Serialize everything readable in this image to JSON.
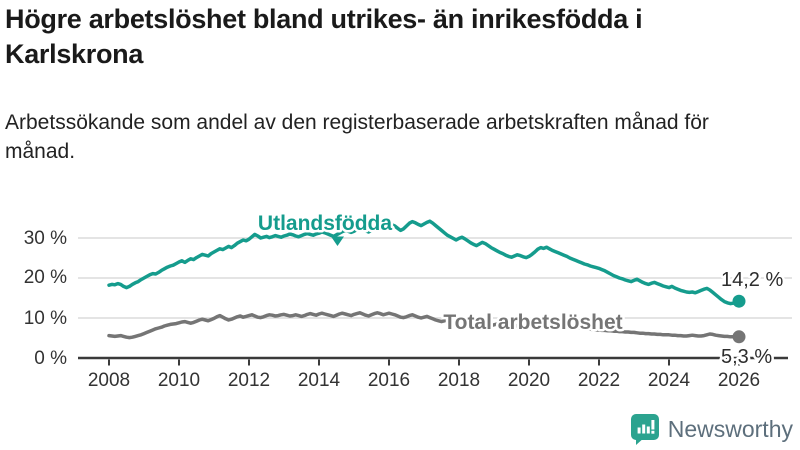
{
  "header": {
    "title": "Högre arbetslöshet bland utrikes- än inrikesfödda i Karlskrona",
    "subtitle": "Arbetssökande som andel av den registerbaserade arbetskraften månad för månad."
  },
  "colors": {
    "foreign_born_line": "#159c8d",
    "total_line": "#757575",
    "grid": "#dcdcdc",
    "axis": "#3a3a3a",
    "tick_text": "#333333",
    "logo_bubble": "#2ba38f",
    "logo_text": "#5d6f7c"
  },
  "chart_data": {
    "type": "line",
    "title": "Högre arbetslöshet bland utrikes- än inrikesfödda i Karlskrona",
    "subtitle": "Arbetssökande som andel av den registerbaserade arbetskraften månad för månad.",
    "xlabel": "",
    "ylabel": "",
    "grid": true,
    "x_unit": "month",
    "x_start_year": 2008,
    "x_end_year": 2026,
    "x_tick_years": [
      2008,
      2010,
      2012,
      2014,
      2016,
      2018,
      2020,
      2022,
      2024,
      2026
    ],
    "y_ticks_percent": [
      0,
      10,
      20,
      30
    ],
    "y_tick_labels": [
      "0 %",
      "10 %",
      "20 %",
      "30 %"
    ],
    "ylim": [
      0,
      37
    ],
    "series": [
      {
        "name": "Utlandsfödda",
        "color": "#159c8d",
        "end_label": "14,2 %",
        "end_value": 14.2,
        "values": [
          18.2,
          18.4,
          18.3,
          18.6,
          18.4,
          17.9,
          17.6,
          17.9,
          18.4,
          18.8,
          19.1,
          19.6,
          20.0,
          20.4,
          20.8,
          21.1,
          21.0,
          21.4,
          21.9,
          22.3,
          22.7,
          23.0,
          23.2,
          23.6,
          24.0,
          24.3,
          23.9,
          24.4,
          24.8,
          24.6,
          25.1,
          25.5,
          25.9,
          25.7,
          25.5,
          26.1,
          26.5,
          26.9,
          27.3,
          27.1,
          27.5,
          27.9,
          27.6,
          28.1,
          28.7,
          29.1,
          29.5,
          29.3,
          29.7,
          30.3,
          30.9,
          30.5,
          30.0,
          30.2,
          30.4,
          30.1,
          30.3,
          30.6,
          30.4,
          30.2,
          30.5,
          30.7,
          31.0,
          30.8,
          30.5,
          30.3,
          30.6,
          30.9,
          31.1,
          30.9,
          30.7,
          31.0,
          31.2,
          31.5,
          31.3,
          31.0,
          30.7,
          30.4,
          30.8,
          31.2,
          31.6,
          31.9,
          31.7,
          31.4,
          31.7,
          32.1,
          32.4,
          32.1,
          31.8,
          31.5,
          31.9,
          32.3,
          32.7,
          32.5,
          32.2,
          32.6,
          32.9,
          33.3,
          33.0,
          32.4,
          31.9,
          32.3,
          33.0,
          33.7,
          34.1,
          33.8,
          33.4,
          33.1,
          33.5,
          33.9,
          34.2,
          33.7,
          33.1,
          32.5,
          31.9,
          31.3,
          30.7,
          30.3,
          29.9,
          29.5,
          29.9,
          30.2,
          29.8,
          29.3,
          28.8,
          28.4,
          28.1,
          28.5,
          28.9,
          28.6,
          28.1,
          27.6,
          27.2,
          26.8,
          26.4,
          26.1,
          25.7,
          25.4,
          25.2,
          25.5,
          25.8,
          25.6,
          25.3,
          25.1,
          25.4,
          25.9,
          26.5,
          27.2,
          27.6,
          27.4,
          27.7,
          27.3,
          26.9,
          26.6,
          26.3,
          26.0,
          25.7,
          25.4,
          25.0,
          24.7,
          24.4,
          24.1,
          23.8,
          23.5,
          23.3,
          23.0,
          22.8,
          22.6,
          22.4,
          22.1,
          21.8,
          21.4,
          21.0,
          20.6,
          20.3,
          20.0,
          19.8,
          19.5,
          19.3,
          19.1,
          19.4,
          19.7,
          19.3,
          18.9,
          18.6,
          18.4,
          18.7,
          18.9,
          18.6,
          18.3,
          18.0,
          17.8,
          17.6,
          17.9,
          17.5,
          17.2,
          16.9,
          16.7,
          16.5,
          16.4,
          16.5,
          16.3,
          16.6,
          16.9,
          17.2,
          17.4,
          17.0,
          16.4,
          15.8,
          15.2,
          14.6,
          14.1,
          13.8,
          13.6,
          13.7,
          13.9,
          14.2
        ]
      },
      {
        "name": "Total arbetslöshet",
        "color": "#757575",
        "end_label": "5,3 %",
        "end_value": 5.3,
        "values": [
          5.6,
          5.5,
          5.4,
          5.5,
          5.6,
          5.4,
          5.2,
          5.1,
          5.2,
          5.4,
          5.6,
          5.8,
          6.1,
          6.4,
          6.7,
          7.0,
          7.3,
          7.5,
          7.7,
          8.0,
          8.2,
          8.4,
          8.5,
          8.6,
          8.8,
          9.0,
          9.1,
          8.9,
          8.7,
          8.9,
          9.2,
          9.5,
          9.7,
          9.5,
          9.3,
          9.6,
          9.9,
          10.3,
          10.6,
          10.2,
          9.8,
          9.5,
          9.7,
          10.0,
          10.3,
          10.5,
          10.2,
          10.4,
          10.6,
          10.8,
          10.5,
          10.2,
          10.1,
          10.3,
          10.6,
          10.8,
          10.7,
          10.5,
          10.6,
          10.8,
          10.9,
          10.7,
          10.5,
          10.6,
          10.8,
          10.6,
          10.4,
          10.6,
          10.9,
          11.1,
          10.9,
          10.7,
          11.0,
          11.2,
          11.0,
          10.8,
          10.6,
          10.4,
          10.7,
          11.0,
          11.2,
          11.0,
          10.8,
          10.6,
          10.9,
          11.1,
          11.3,
          11.0,
          10.7,
          10.5,
          10.8,
          11.1,
          11.3,
          11.1,
          10.8,
          11.0,
          11.2,
          11.0,
          10.8,
          10.5,
          10.2,
          10.1,
          10.3,
          10.6,
          10.8,
          10.5,
          10.2,
          10.0,
          10.2,
          10.4,
          10.1,
          9.8,
          9.5,
          9.3,
          9.1,
          9.3,
          9.5,
          9.3,
          9.1,
          8.9,
          9.1,
          9.3,
          9.1,
          8.8,
          8.6,
          8.4,
          8.3,
          8.5,
          8.7,
          8.5,
          8.3,
          8.1,
          8.3,
          8.5,
          8.3,
          8.1,
          7.9,
          7.8,
          7.7,
          7.9,
          8.1,
          8.0,
          7.9,
          7.8,
          8.0,
          8.2,
          8.6,
          9.1,
          9.5,
          9.7,
          9.8,
          9.6,
          9.4,
          9.2,
          9.0,
          8.8,
          8.4,
          8.2,
          8.0,
          7.9,
          7.7,
          7.6,
          7.5,
          7.4,
          7.3,
          7.2,
          7.1,
          7.0,
          7.0,
          6.9,
          6.9,
          6.8,
          6.8,
          6.7,
          6.7,
          6.6,
          6.6,
          6.5,
          6.5,
          6.4,
          6.4,
          6.3,
          6.2,
          6.2,
          6.1,
          6.1,
          6.0,
          6.0,
          5.9,
          5.9,
          5.8,
          5.8,
          5.8,
          5.7,
          5.7,
          5.6,
          5.6,
          5.5,
          5.5,
          5.6,
          5.7,
          5.6,
          5.5,
          5.5,
          5.6,
          5.8,
          6.0,
          5.9,
          5.7,
          5.6,
          5.5,
          5.4,
          5.4,
          5.3,
          5.3,
          5.2,
          5.3
        ]
      }
    ]
  },
  "logo": {
    "brand": "Newsworthy",
    "icon": "newsworthy-bar-chart-bubble-icon"
  }
}
